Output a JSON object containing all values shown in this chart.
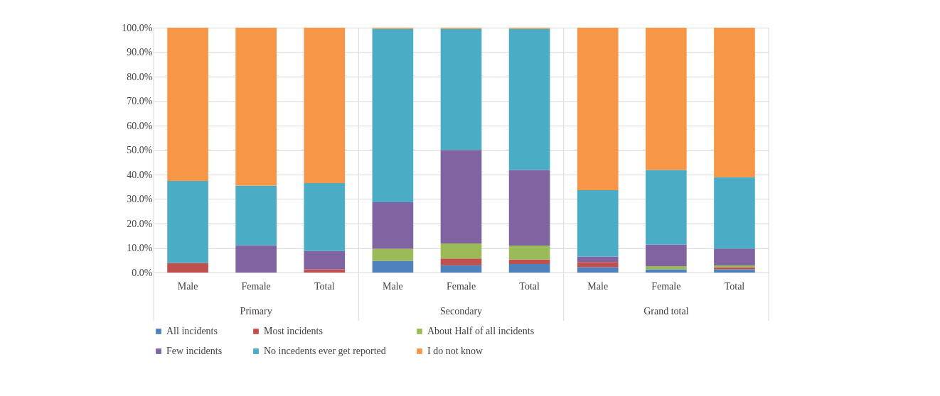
{
  "chart_data": {
    "type": "bar",
    "stacked": true,
    "categories": [
      "Male",
      "Female",
      "Total",
      "Male",
      "Female",
      "Total",
      "Male",
      "Female",
      "Total"
    ],
    "series": [
      {
        "name": "All incidents",
        "color": "#4f81bd",
        "values": [
          0,
          0,
          0,
          4.8,
          3.0,
          3.5,
          2.2,
          1.3,
          1.3
        ]
      },
      {
        "name": "Most incidents",
        "color": "#c0504d",
        "values": [
          3.9,
          0,
          1.3,
          0,
          2.7,
          1.8,
          2.1,
          0,
          0.8
        ]
      },
      {
        "name": "About Half of all incidents",
        "color": "#9bbb59",
        "values": [
          0,
          0,
          0,
          4.9,
          6.2,
          5.7,
          0,
          1.3,
          0.8
        ]
      },
      {
        "name": "Few incidents",
        "color": "#8064a2",
        "values": [
          0,
          11.1,
          7.5,
          19.0,
          38.2,
          30.9,
          2.2,
          8.8,
          6.9
        ]
      },
      {
        "name": "No incedents ever get reported",
        "color": "#4bacc6",
        "values": [
          33.5,
          24.4,
          27.7,
          70.9,
          49.5,
          57.7,
          27.1,
          30.5,
          29.1
        ]
      },
      {
        "name": "I  do not know",
        "color": "#f79646",
        "values": [
          62.6,
          64.5,
          63.5,
          0.4,
          0.4,
          0.4,
          66.4,
          58.1,
          61.1
        ]
      }
    ],
    "annotations": [
      "Primary",
      "Secondary",
      "Grand total"
    ],
    "ylim": [
      0,
      100
    ],
    "yticks": [
      {
        "value": 0,
        "label": "0.0%"
      },
      {
        "value": 10,
        "label": "10.0%"
      },
      {
        "value": 20,
        "label": "20.0%"
      },
      {
        "value": 30,
        "label": "30.0%"
      },
      {
        "value": 40,
        "label": "40.0%"
      },
      {
        "value": 50,
        "label": "50.0%"
      },
      {
        "value": 60,
        "label": "60.0%"
      },
      {
        "value": 70,
        "label": "70.0%"
      },
      {
        "value": 80,
        "label": "80.0%"
      },
      {
        "value": 90,
        "label": "90.0%"
      },
      {
        "value": 100,
        "label": "100.0%"
      }
    ],
    "grid": "y",
    "legend": "bottom"
  }
}
